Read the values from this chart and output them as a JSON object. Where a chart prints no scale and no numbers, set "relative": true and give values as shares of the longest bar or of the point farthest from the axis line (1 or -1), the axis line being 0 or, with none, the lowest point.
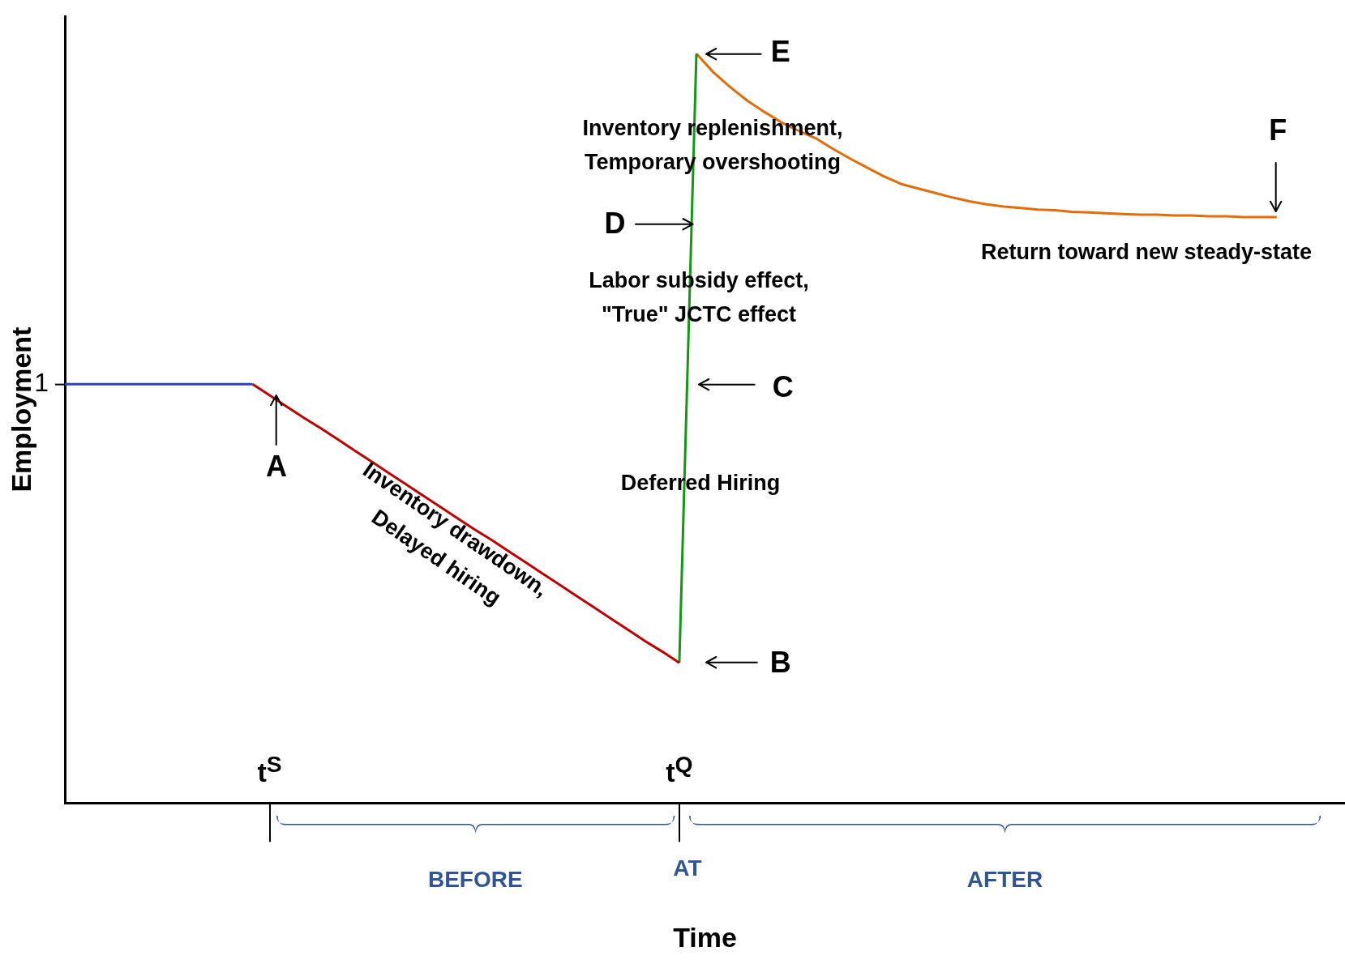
{
  "chart_data": {
    "type": "line",
    "relative": true,
    "xlabel": "Time",
    "ylabel": "Employment",
    "categories": [
      null,
      null,
      null,
      null,
      null,
      null,
      null,
      null,
      null,
      null,
      null,
      null,
      "t$^{S}$",
      null,
      null,
      null,
      null,
      null,
      null,
      null,
      null,
      null,
      null,
      null,
      null,
      null,
      null,
      null,
      null,
      null,
      null,
      null,
      null,
      null,
      null,
      null,
      "t$^{Q}$",
      null,
      null,
      null,
      null,
      null,
      null,
      null,
      null,
      null,
      null,
      null,
      null,
      null,
      null,
      null,
      null,
      null,
      null,
      null,
      null,
      null,
      null,
      null,
      null,
      null,
      null,
      null,
      null,
      null,
      null,
      null,
      null,
      null,
      null,
      null,
      null,
      null,
      null,
      null
    ],
    "series": [
      {
        "color": "#2a3fcc",
        "values": [
          0.559,
          0.559,
          0.559,
          0.559,
          0.559,
          0.559,
          0.559,
          0.559,
          0.559,
          0.559,
          0.559,
          0.559,
          null,
          null,
          null,
          null,
          null,
          null,
          null,
          null,
          null,
          null,
          null,
          null,
          null,
          null,
          null,
          null,
          null,
          null,
          null,
          null,
          null,
          null,
          null,
          null,
          null,
          null,
          null,
          null,
          null,
          null,
          null,
          null,
          null,
          null,
          null,
          null,
          null,
          null,
          null,
          null,
          null,
          null,
          null,
          null,
          null,
          null,
          null,
          null,
          null,
          null,
          null,
          null,
          null,
          null,
          null,
          null,
          null,
          null,
          null,
          null,
          null,
          null,
          null,
          null
        ]
      },
      {
        "color": "#c00000",
        "values": [
          null,
          null,
          null,
          null,
          null,
          null,
          null,
          null,
          null,
          null,
          null,
          0.559,
          0.544,
          0.529,
          0.514,
          0.5,
          0.485,
          0.47,
          0.455,
          0.44,
          0.425,
          0.41,
          0.395,
          0.38,
          0.365,
          0.351,
          0.336,
          0.321,
          0.306,
          0.291,
          0.276,
          0.261,
          0.246,
          0.231,
          0.216,
          0.202,
          0.187,
          null,
          null,
          null,
          null,
          null,
          null,
          null,
          null,
          null,
          null,
          null,
          null,
          null,
          null,
          null,
          null,
          null,
          null,
          null,
          null,
          null,
          null,
          null,
          null,
          null,
          null,
          null,
          null,
          null,
          null,
          null,
          null,
          null,
          null,
          null,
          null,
          null,
          null,
          null
        ]
      },
      {
        "color": "#119911",
        "values": [
          null,
          null,
          null,
          null,
          null,
          null,
          null,
          null,
          null,
          null,
          null,
          null,
          null,
          null,
          null,
          null,
          null,
          null,
          null,
          null,
          null,
          null,
          null,
          null,
          null,
          null,
          null,
          null,
          null,
          null,
          null,
          null,
          null,
          null,
          null,
          null,
          0.187,
          1.0,
          null,
          null,
          null,
          null,
          null,
          null,
          null,
          null,
          null,
          null,
          null,
          null,
          null,
          null,
          null,
          null,
          null,
          null,
          null,
          null,
          null,
          null,
          null,
          null,
          null,
          null,
          null,
          null,
          null,
          null,
          null,
          null,
          null,
          null,
          null,
          null,
          null,
          null
        ]
      },
      {
        "color": "#e46c0a",
        "values": [
          null,
          null,
          null,
          null,
          null,
          null,
          null,
          null,
          null,
          null,
          null,
          null,
          null,
          null,
          null,
          null,
          null,
          null,
          null,
          null,
          null,
          null,
          null,
          null,
          null,
          null,
          null,
          null,
          null,
          null,
          null,
          null,
          null,
          null,
          null,
          null,
          null,
          1.0,
          0.975,
          0.955,
          0.937,
          0.922,
          0.908,
          0.897,
          0.887,
          0.873,
          0.86,
          0.848,
          0.836,
          0.826,
          0.82,
          0.814,
          0.808,
          0.803,
          0.799,
          0.796,
          0.794,
          0.792,
          0.791,
          0.789,
          0.788,
          0.787,
          0.786,
          0.785,
          0.785,
          0.784,
          0.784,
          0.783,
          0.783,
          0.782,
          0.782,
          0.782,
          null,
          null,
          null,
          null
        ]
      }
    ],
    "annotations": [
      "1",
      "A",
      "B",
      "C",
      "D",
      "E",
      "F",
      "Inventory replenishment,\nTemporary overshooting",
      "Labor subsidy effect,\n\"True\" JCTC effect",
      "Deferred Hiring",
      "Return toward new steady-state",
      "Inventory drawdown,\nDelayed hiring",
      "BEFORE",
      "AT",
      "AFTER"
    ]
  }
}
